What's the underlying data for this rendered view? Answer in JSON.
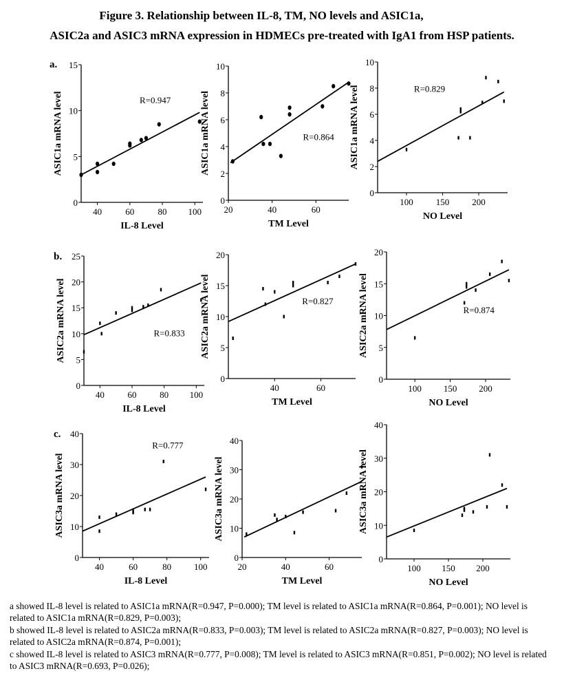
{
  "figure": {
    "title_line1": "Figure 3. Relationship between IL-8, TM, NO levels and ASIC1a,",
    "title_line2": "ASIC2a and ASIC3 mRNA expression in HDMECs pre-treated with IgA1 from HSP patients."
  },
  "rows": [
    {
      "label": "a."
    },
    {
      "label": "b."
    },
    {
      "label": "c."
    }
  ],
  "chart_data": [
    {
      "type": "scatter",
      "panel": "a-IL8",
      "xlabel": "IL-8 Level",
      "ylabel": "ASIC1a mRNA level",
      "xlim": [
        30,
        105
      ],
      "ylim": [
        0,
        15
      ],
      "xticks": [
        40,
        60,
        80,
        100
      ],
      "yticks": [
        0,
        5,
        10,
        15
      ],
      "points": [
        [
          30,
          3.0
        ],
        [
          40,
          4.2
        ],
        [
          40,
          3.3
        ],
        [
          50,
          4.2
        ],
        [
          60,
          6.2
        ],
        [
          60,
          6.4
        ],
        [
          67,
          6.8
        ],
        [
          70,
          7.0
        ],
        [
          78,
          8.5
        ],
        [
          103,
          8.8
        ]
      ],
      "fit": [
        [
          30,
          3.0
        ],
        [
          103,
          9.8
        ]
      ],
      "annotation": "R=0.947",
      "marker": "dot"
    },
    {
      "type": "scatter",
      "panel": "a-TM",
      "xlabel": "TM Level",
      "ylabel": "ASIC1a mRNA level",
      "xlim": [
        20,
        75
      ],
      "ylim": [
        0,
        10
      ],
      "xticks": [
        20,
        40,
        60
      ],
      "yticks": [
        0,
        2,
        4,
        6,
        8,
        10
      ],
      "points": [
        [
          22,
          2.9
        ],
        [
          35,
          6.2
        ],
        [
          36,
          4.2
        ],
        [
          39,
          4.2
        ],
        [
          44,
          3.3
        ],
        [
          48,
          6.9
        ],
        [
          48,
          6.4
        ],
        [
          63,
          7.0
        ],
        [
          68,
          8.5
        ],
        [
          75,
          8.7
        ]
      ],
      "fit": [
        [
          21,
          2.8
        ],
        [
          75,
          8.8
        ]
      ],
      "annotation": "R=0.864",
      "marker": "dot"
    },
    {
      "type": "scatter",
      "panel": "a-NO",
      "xlabel": "NO Level",
      "ylabel": "ASIC1a mRNA level",
      "xlim": [
        60,
        240
      ],
      "ylim": [
        0,
        10
      ],
      "xticks": [
        100,
        150,
        200
      ],
      "yticks": [
        0,
        2,
        4,
        6,
        8,
        10
      ],
      "points": [
        [
          100,
          3.3
        ],
        [
          172,
          4.2
        ],
        [
          175,
          6.2
        ],
        [
          175,
          6.4
        ],
        [
          188,
          4.2
        ],
        [
          205,
          6.9
        ],
        [
          210,
          8.8
        ],
        [
          227,
          8.5
        ],
        [
          235,
          7.0
        ]
      ],
      "fit": [
        [
          60,
          2.4
        ],
        [
          235,
          7.7
        ]
      ],
      "annotation": "R=0.829",
      "marker": "tick"
    },
    {
      "type": "scatter",
      "panel": "b-IL8",
      "xlabel": "IL-8 Level",
      "ylabel": "ASIC2a mRNA level",
      "xlim": [
        30,
        105
      ],
      "ylim": [
        0,
        25
      ],
      "xticks": [
        40,
        60,
        80,
        100
      ],
      "yticks": [
        0,
        5,
        10,
        15,
        20,
        25
      ],
      "points": [
        [
          30,
          6.5
        ],
        [
          40,
          12.0
        ],
        [
          41,
          10.0
        ],
        [
          50,
          14.0
        ],
        [
          60,
          14.5
        ],
        [
          60,
          15.0
        ],
        [
          67,
          15.2
        ],
        [
          70,
          15.5
        ],
        [
          78,
          18.5
        ],
        [
          103,
          16.5
        ]
      ],
      "fit": [
        [
          30,
          9.8
        ],
        [
          103,
          19.8
        ]
      ],
      "annotation": "R=0.833",
      "marker": "tick"
    },
    {
      "type": "scatter",
      "panel": "b-TM",
      "xlabel": "TM Level",
      "ylabel": "ASIC2a mRNA level",
      "xlim": [
        20,
        75
      ],
      "ylim": [
        0,
        20
      ],
      "xticks": [
        40,
        60
      ],
      "yticks": [
        0,
        5,
        10,
        15,
        20
      ],
      "points": [
        [
          22,
          6.5
        ],
        [
          35,
          14.5
        ],
        [
          36,
          12.0
        ],
        [
          40,
          14.0
        ],
        [
          44,
          10.0
        ],
        [
          48,
          15.0
        ],
        [
          48,
          15.5
        ],
        [
          63,
          15.5
        ],
        [
          68,
          16.5
        ],
        [
          75,
          18.5
        ]
      ],
      "fit": [
        [
          20,
          9.2
        ],
        [
          75,
          18.5
        ]
      ],
      "annotation": "R=0.827",
      "marker": "tick"
    },
    {
      "type": "scatter",
      "panel": "b-NO",
      "xlabel": "NO Level",
      "ylabel": "ASIC2a mRNA level",
      "xlim": [
        60,
        235
      ],
      "ylim": [
        0,
        20
      ],
      "xticks": [
        100,
        150,
        200
      ],
      "yticks": [
        0,
        5,
        10,
        15,
        20
      ],
      "points": [
        [
          100,
          6.5
        ],
        [
          170,
          12.0
        ],
        [
          173,
          14.5
        ],
        [
          173,
          15.0
        ],
        [
          186,
          14.0
        ],
        [
          206,
          16.5
        ],
        [
          223,
          18.5
        ],
        [
          233,
          15.5
        ]
      ],
      "fit": [
        [
          60,
          7.8
        ],
        [
          233,
          17.2
        ]
      ],
      "annotation": "R=0.874",
      "marker": "tick"
    },
    {
      "type": "scatter",
      "panel": "c-IL8",
      "xlabel": "IL-8 Level",
      "ylabel": "ASIC3a mRNA level",
      "xlim": [
        30,
        105
      ],
      "ylim": [
        0,
        40
      ],
      "xticks": [
        40,
        60,
        80,
        100
      ],
      "yticks": [
        0,
        10,
        20,
        30,
        40
      ],
      "points": [
        [
          40,
          13.0
        ],
        [
          40,
          8.5
        ],
        [
          50,
          14.0
        ],
        [
          60,
          15.0
        ],
        [
          60,
          14.5
        ],
        [
          67,
          15.5
        ],
        [
          70,
          15.5
        ],
        [
          78,
          31.0
        ],
        [
          103,
          22.0
        ]
      ],
      "fit": [
        [
          30,
          8.5
        ],
        [
          103,
          26.0
        ]
      ],
      "annotation": "R=0.777",
      "marker": "tick"
    },
    {
      "type": "scatter",
      "panel": "c-TM",
      "xlabel": "TM Level",
      "ylabel": "ASIC3a mRNA level",
      "xlim": [
        20,
        75
      ],
      "ylim": [
        0,
        40
      ],
      "xticks": [
        20,
        40,
        60
      ],
      "yticks": [
        0,
        10,
        20,
        30,
        40
      ],
      "points": [
        [
          22,
          8.0
        ],
        [
          35,
          14.5
        ],
        [
          36,
          13.0
        ],
        [
          40,
          14.0
        ],
        [
          44,
          8.5
        ],
        [
          48,
          15.5
        ],
        [
          63,
          16.0
        ],
        [
          68,
          22.0
        ],
        [
          75,
          31.0
        ]
      ],
      "fit": [
        [
          21,
          7.0
        ],
        [
          75,
          26.0
        ]
      ],
      "annotation": "",
      "marker": "tick"
    },
    {
      "type": "scatter",
      "panel": "c-NO",
      "xlabel": "NO Level",
      "ylabel": "ASIC3a mRNA level",
      "xlim": [
        60,
        240
      ],
      "ylim": [
        0,
        40
      ],
      "xticks": [
        100,
        150,
        200
      ],
      "yticks": [
        0,
        10,
        20,
        30,
        40
      ],
      "points": [
        [
          100,
          8.5
        ],
        [
          170,
          13.0
        ],
        [
          173,
          14.5
        ],
        [
          173,
          15.0
        ],
        [
          186,
          14.0
        ],
        [
          206,
          15.5
        ],
        [
          210,
          31.0
        ],
        [
          228,
          22.0
        ],
        [
          235,
          15.5
        ]
      ],
      "fit": [
        [
          60,
          6.5
        ],
        [
          235,
          21.0
        ]
      ],
      "annotation": "",
      "marker": "tick"
    }
  ],
  "caption": {
    "line_a": "a showed IL-8 level is related to ASIC1a mRNA(R=0.947, P=0.000); TM level is related to ASIC1a mRNA(R=0.864, P=0.001); NO level is related to ASIC1a mRNA(R=0.829, P=0.003);",
    "line_b": "b showed IL-8 level is related to ASIC2a mRNA(R=0.833, P=0.003); TM level is related to ASIC2a mRNA(R=0.827, P=0.003); NO level is related to ASIC2a mRNA(R=0.874, P=0.001);",
    "line_c": "c showed IL-8 level is related to ASIC3 mRNA(R=0.777, P=0.008); TM level is related to ASIC3 mRNA(R=0.851, P=0.002); NO level is related to ASIC3 mRNA(R=0.693, P=0.026);"
  }
}
